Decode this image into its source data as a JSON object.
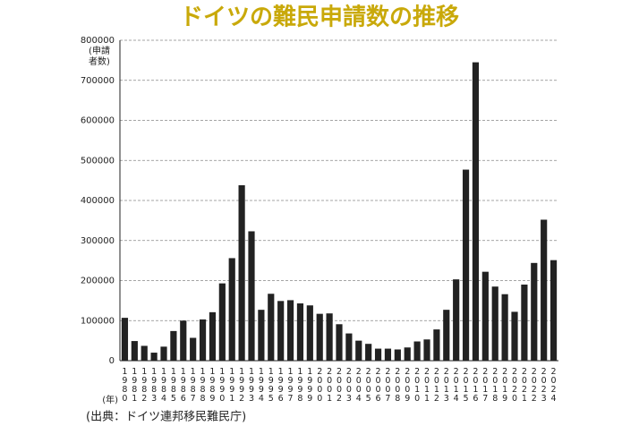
{
  "chart_data": {
    "type": "bar",
    "title": "ドイツの難民申請数の推移",
    "y_label": "(申請者数)",
    "x_label": "(年)",
    "source": "(出典：ドイツ連邦移民難民庁)",
    "categories": [
      "1980",
      "1981",
      "1982",
      "1983",
      "1984",
      "1985",
      "1986",
      "1987",
      "1988",
      "1989",
      "1990",
      "1991",
      "1992",
      "1993",
      "1994",
      "1995",
      "1996",
      "1997",
      "1998",
      "1999",
      "2000",
      "2001",
      "2002",
      "2003",
      "2004",
      "2005",
      "2006",
      "2007",
      "2008",
      "2009",
      "2010",
      "2011",
      "2012",
      "2013",
      "2014",
      "2015",
      "2016",
      "2017",
      "2018",
      "2019",
      "2020",
      "2021",
      "2022",
      "2023",
      "2024"
    ],
    "values": [
      107000,
      49000,
      37000,
      20000,
      35000,
      74000,
      100000,
      57000,
      103000,
      121000,
      193000,
      256000,
      438000,
      323000,
      127000,
      167000,
      149000,
      151000,
      143000,
      138000,
      117000,
      118000,
      91000,
      68000,
      50000,
      42000,
      30000,
      30000,
      28000,
      33000,
      48000,
      53000,
      78000,
      127000,
      203000,
      477000,
      745000,
      222000,
      185000,
      166000,
      122000,
      190000,
      244000,
      352000,
      251000
    ],
    "color": "#222222",
    "ylim": [
      0,
      800000
    ],
    "yticks": [
      0,
      100000,
      200000,
      300000,
      400000,
      500000,
      600000,
      700000,
      800000
    ],
    "grid": true
  }
}
